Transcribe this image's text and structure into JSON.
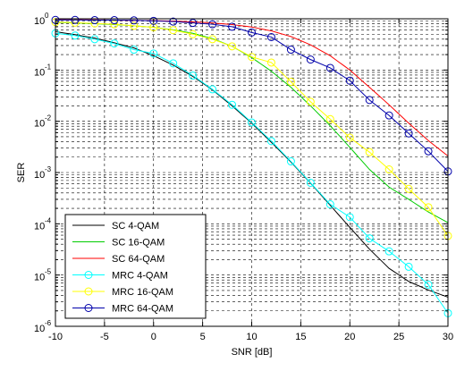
{
  "chart_data": {
    "type": "line",
    "xlabel": "SNR [dB]",
    "ylabel": "SER",
    "xlim": [
      -10,
      30
    ],
    "ylim_log10": [
      -6,
      0
    ],
    "yscale": "log",
    "grid": "dashed, major and minor on log y axis",
    "legend_position": "bottom-left",
    "x_ticks": [
      "-10",
      "-5",
      "0",
      "5",
      "10",
      "15",
      "20",
      "25",
      "30"
    ],
    "x_tick_values": [
      -10,
      -5,
      0,
      5,
      10,
      15,
      20,
      25,
      30
    ],
    "y_tick_exponents": [
      -6,
      -5,
      -4,
      -3,
      -2,
      -1,
      0
    ],
    "y_tick_base": "10",
    "y_tick_exps": [
      "-6",
      "-5",
      "-4",
      "-3",
      "-2",
      "-1",
      "0"
    ],
    "series": [
      {
        "name": "SC 4-QAM",
        "color": "#000000",
        "marker": "none",
        "x": [
          -10,
          -8,
          -6,
          -4,
          -2,
          0,
          2,
          4,
          6,
          8,
          10,
          12,
          14,
          16,
          18,
          20,
          22,
          24,
          26,
          28,
          30
        ],
        "y": [
          0.56,
          0.49,
          0.42,
          0.34,
          0.27,
          0.19,
          0.125,
          0.075,
          0.041,
          0.02,
          0.0092,
          0.0039,
          0.0016,
          0.00062,
          0.00023,
          8.5e-05,
          3.2e-05,
          1.35e-05,
          7.5e-06,
          5.1e-06,
          3.7e-06
        ]
      },
      {
        "name": "SC 16-QAM",
        "color": "#00cc00",
        "marker": "none",
        "x": [
          -10,
          -8,
          -6,
          -4,
          -2,
          0,
          2,
          4,
          6,
          8,
          10,
          12,
          14,
          16,
          18,
          20,
          22,
          24,
          26,
          28,
          30
        ],
        "y": [
          0.85,
          0.83,
          0.8,
          0.77,
          0.73,
          0.68,
          0.61,
          0.52,
          0.41,
          0.29,
          0.175,
          0.095,
          0.046,
          0.02,
          0.0082,
          0.0031,
          0.00115,
          0.00052,
          0.0003,
          0.00017,
          0.000105
        ]
      },
      {
        "name": "SC 64-QAM",
        "color": "#ff0000",
        "marker": "none",
        "x": [
          -10,
          -8,
          -6,
          -4,
          -2,
          0,
          2,
          4,
          6,
          8,
          10,
          12,
          14,
          16,
          18,
          20,
          22,
          24,
          26,
          28,
          30
        ],
        "y": [
          0.96,
          0.955,
          0.95,
          0.94,
          0.93,
          0.92,
          0.9,
          0.87,
          0.83,
          0.77,
          0.69,
          0.58,
          0.45,
          0.31,
          0.19,
          0.1,
          0.046,
          0.021,
          0.0092,
          0.0042,
          0.0021
        ]
      },
      {
        "name": "MRC 4-QAM",
        "color": "#00ffff",
        "marker": "circle",
        "x": [
          -10,
          -8,
          -6,
          -4,
          -2,
          0,
          2,
          4,
          6,
          8,
          10,
          12,
          14,
          16,
          18,
          20,
          22,
          24,
          26,
          28,
          30
        ],
        "y": [
          0.52,
          0.47,
          0.4,
          0.33,
          0.25,
          0.21,
          0.135,
          0.078,
          0.042,
          0.021,
          0.0095,
          0.0041,
          0.00165,
          0.00063,
          0.00024,
          0.000135,
          5.2e-05,
          2.9e-05,
          1.45e-05,
          6.5e-06,
          1.8e-06
        ]
      },
      {
        "name": "MRC 16-QAM",
        "color": "#ffff00",
        "marker": "circle",
        "x": [
          -10,
          -8,
          -6,
          -4,
          -2,
          0,
          2,
          4,
          6,
          8,
          10,
          12,
          14,
          16,
          18,
          20,
          22,
          24,
          26,
          28,
          30
        ],
        "y": [
          0.86,
          0.84,
          0.81,
          0.78,
          0.73,
          0.68,
          0.6,
          0.5,
          0.4,
          0.29,
          0.18,
          0.14,
          0.059,
          0.024,
          0.011,
          0.0048,
          0.0025,
          0.00115,
          0.00048,
          0.00021,
          5.8e-05
        ]
      },
      {
        "name": "MRC 64-QAM",
        "color": "#0000aa",
        "marker": "circle",
        "x": [
          -10,
          -8,
          -6,
          -4,
          -2,
          0,
          2,
          4,
          6,
          8,
          10,
          12,
          14,
          16,
          18,
          20,
          22,
          24,
          26,
          28,
          30
        ],
        "y": [
          0.95,
          0.95,
          0.94,
          0.94,
          0.93,
          0.91,
          0.88,
          0.83,
          0.78,
          0.7,
          0.54,
          0.44,
          0.25,
          0.16,
          0.11,
          0.062,
          0.026,
          0.013,
          0.0058,
          0.0026,
          0.00105
        ]
      }
    ]
  }
}
